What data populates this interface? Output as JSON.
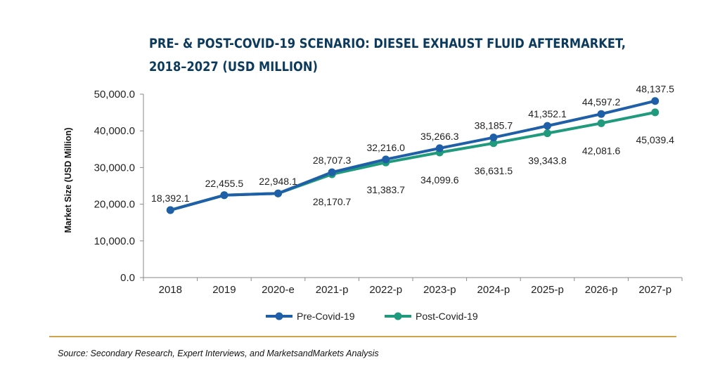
{
  "title_lines": [
    "PRE- & POST-COVID-19 SCENARIO: DIESEL EXHAUST FLUID AFTERMARKET,",
    "2018–2027 (USD MILLION)"
  ],
  "source": "Source: Secondary Research, Expert Interviews, and MarketsandMarkets Analysis",
  "chart_data": {
    "type": "line",
    "title": "PRE- & POST-COVID-19 SCENARIO: DIESEL EXHAUST FLUID AFTERMARKET, 2018–2027 (USD MILLION)",
    "xlabel": "",
    "ylabel": "Market Size (USD Million)",
    "categories": [
      "2018",
      "2019",
      "2020-e",
      "2021-p",
      "2022-p",
      "2023-p",
      "2024-p",
      "2025-p",
      "2026-p",
      "2027-p"
    ],
    "ylim": [
      0,
      50000
    ],
    "yticks": [
      0,
      10000,
      20000,
      30000,
      40000,
      50000
    ],
    "ytick_labels": [
      "0.0",
      "10,000.0",
      "20,000.0",
      "30,000.0",
      "40,000.0",
      "50,000.0"
    ],
    "grid": false,
    "legend_position": "bottom",
    "series": [
      {
        "name": "Pre-Covid-19",
        "color": "#1f5fa8",
        "values": [
          18392.1,
          22455.5,
          22948.1,
          28707.3,
          32216.0,
          35266.3,
          38185.7,
          41352.1,
          44597.2,
          48137.5
        ],
        "labels": [
          "18,392.1",
          "22,455.5",
          "22,948.1",
          "28,707.3",
          "32,216.0",
          "35,266.3",
          "38,185.7",
          "41,352.1",
          "44,597.2",
          "48,137.5"
        ]
      },
      {
        "name": "Post-Covid-19",
        "color": "#1f9a7c",
        "values": [
          18392.1,
          22455.5,
          22948.1,
          28170.7,
          31383.7,
          34099.6,
          36631.5,
          39343.8,
          42081.6,
          45039.4
        ],
        "labels": [
          "",
          "",
          "",
          "28,170.7",
          "31,383.7",
          "34,099.6",
          "36,631.5",
          "39,343.8",
          "42,081.6",
          "45,039.4"
        ]
      }
    ]
  }
}
